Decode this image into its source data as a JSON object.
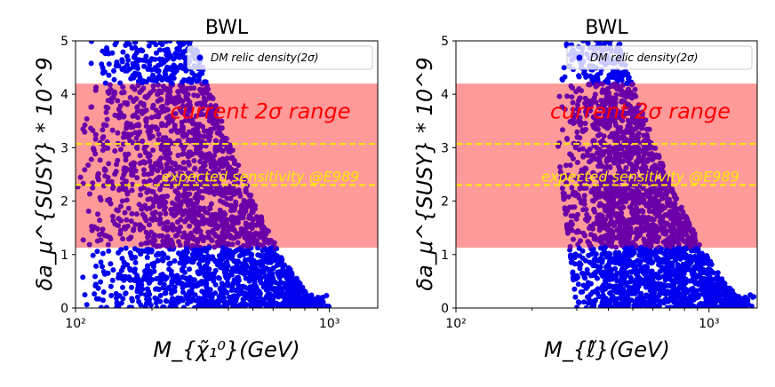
{
  "chart_data": [
    {
      "type": "scatter",
      "title": "BWL",
      "xlabel": "M_{χ̃₁⁰}(GeV)",
      "ylabel": "δa_μ^{SUSY} * 10^9",
      "xscale": "log",
      "xlim": [
        100,
        1550
      ],
      "ylim": [
        0,
        5
      ],
      "x_ticks": [
        {
          "v": 100,
          "label": "10²"
        },
        {
          "v": 1000,
          "label": "10³"
        }
      ],
      "y_ticks": [
        0,
        1,
        2,
        3,
        4,
        5
      ],
      "band": {
        "y_low": 1.13,
        "y_high": 4.2,
        "label": "current 2σ range",
        "color": "#ff9a9a"
      },
      "sensitivity_lines": {
        "y": [
          2.3,
          3.07
        ],
        "label": "expected sensitivity @E989",
        "color": "#ffea00"
      },
      "legend": {
        "label": "DM relic density(2σ)",
        "placement": "top-right",
        "marker_color": "#0000ee"
      },
      "point_cloud": {
        "x_min": 100,
        "x_peak": 280,
        "x_max": 1020,
        "y_min": 0,
        "y_max": 5,
        "color_in_band": "#6a00a8",
        "color_out_band": "#0000ee"
      }
    },
    {
      "type": "scatter",
      "title": "BWL",
      "xlabel": "M_{ℓ̃}(GeV)",
      "ylabel": "δa_μ^{SUSY} * 10^9",
      "xscale": "log",
      "xlim": [
        100,
        1550
      ],
      "ylim": [
        0,
        5
      ],
      "x_ticks": [
        {
          "v": 100,
          "label": "10²"
        },
        {
          "v": 1000,
          "label": "10³"
        }
      ],
      "y_ticks": [
        0,
        1,
        2,
        3,
        4,
        5
      ],
      "band": {
        "y_low": 1.13,
        "y_high": 4.2,
        "label": "current 2σ range",
        "color": "#ff9a9a"
      },
      "sensitivity_lines": {
        "y": [
          2.3,
          3.07
        ],
        "label": "expected sensitivity @E989",
        "color": "#ffea00"
      },
      "legend": {
        "label": "DM relic density(2σ)",
        "placement": "top-right",
        "marker_color": "#0000ee"
      },
      "point_cloud": {
        "x_min": 250,
        "x_peak": 420,
        "x_max": 1550,
        "y_min": 0,
        "y_max": 5,
        "color_in_band": "#6a00a8",
        "color_out_band": "#0000ee"
      }
    }
  ]
}
